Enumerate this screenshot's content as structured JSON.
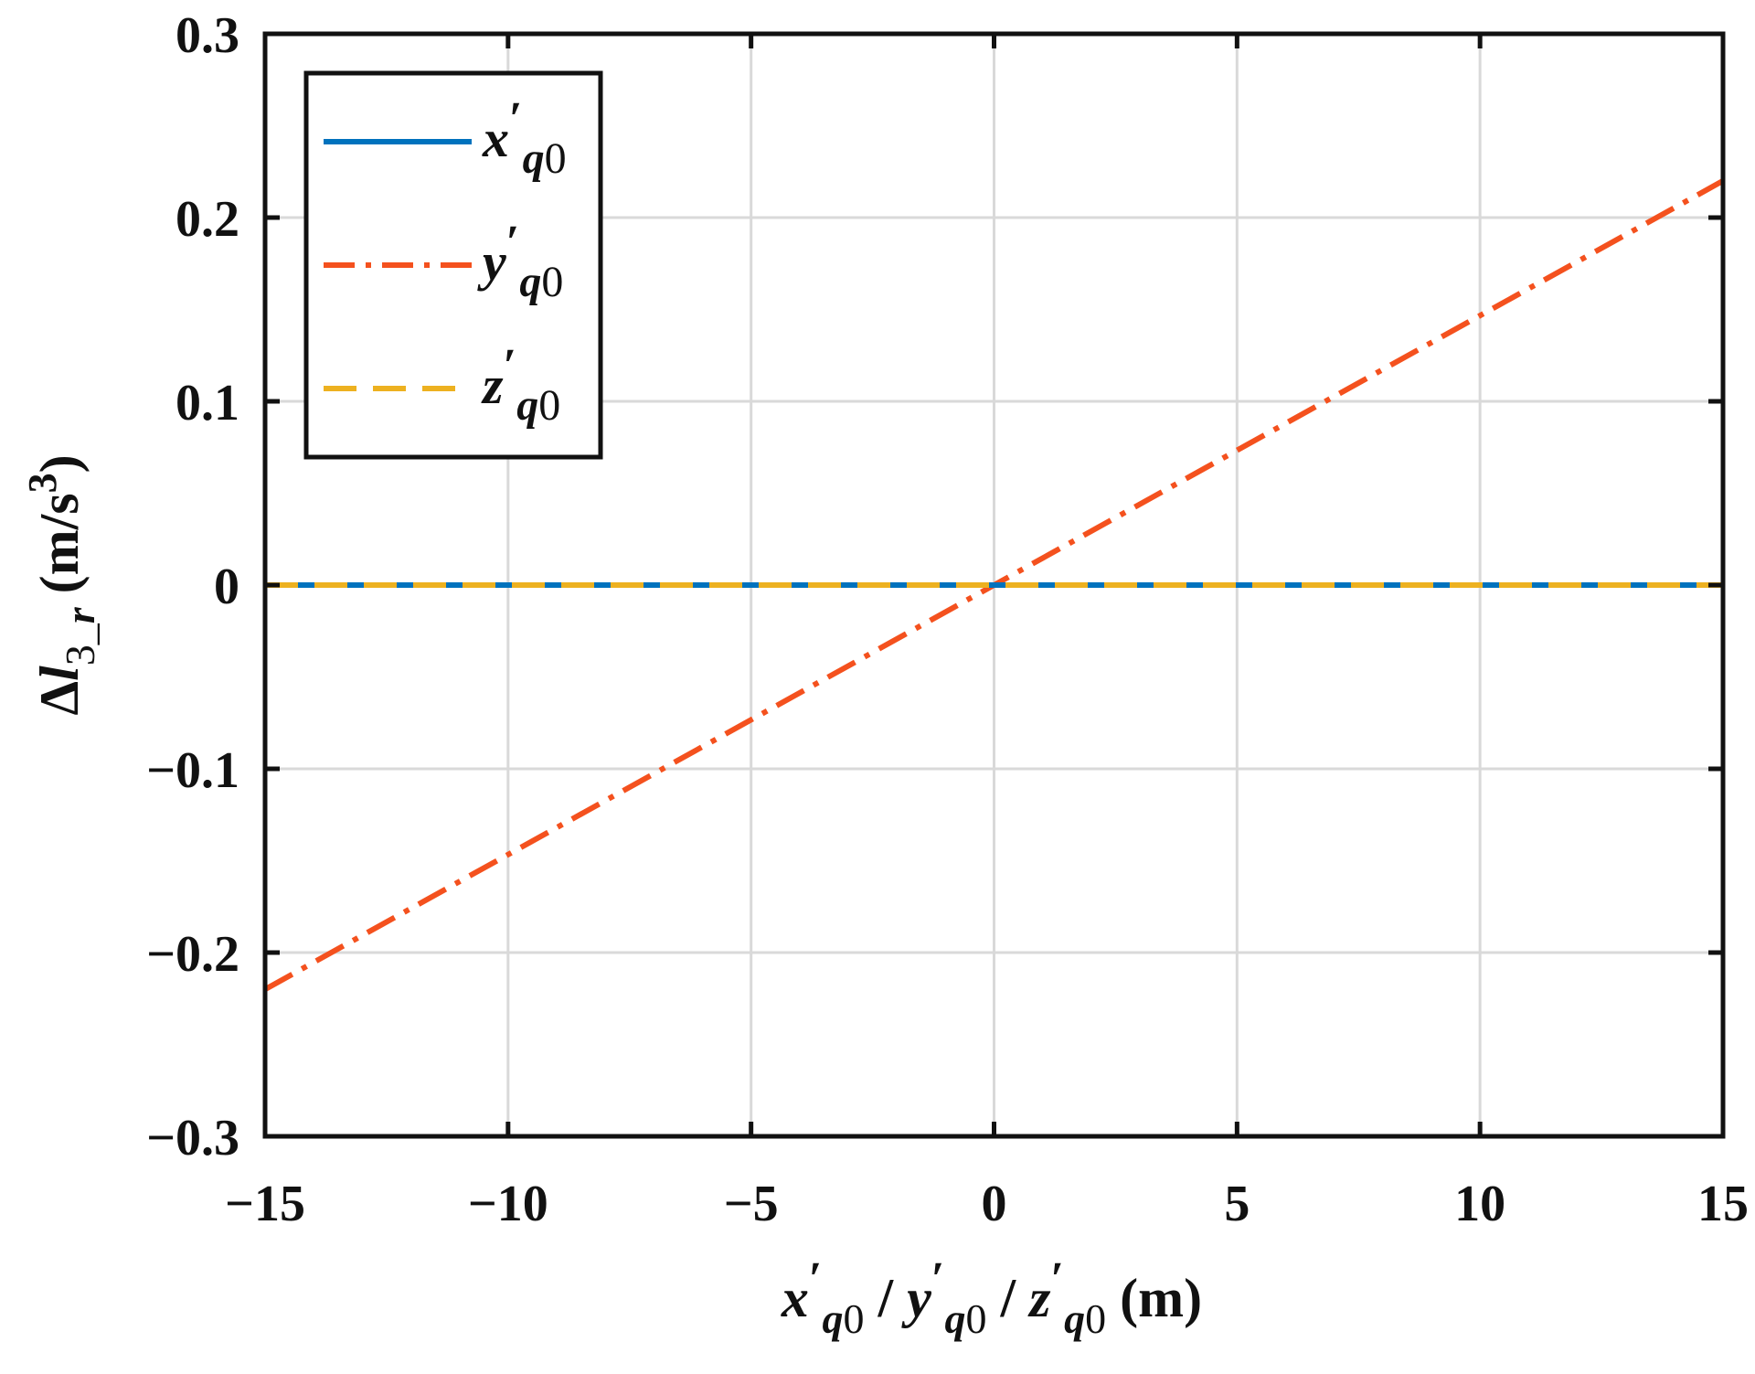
{
  "chart_data": {
    "type": "line",
    "xlim": [
      -15,
      15
    ],
    "ylim": [
      -0.3,
      0.3
    ],
    "grid": true,
    "legend_position": "top-left",
    "xticks": [
      {
        "value": -15,
        "label": "−15"
      },
      {
        "value": -10,
        "label": "−10"
      },
      {
        "value": -5,
        "label": "−5"
      },
      {
        "value": 0,
        "label": "0"
      },
      {
        "value": 5,
        "label": "5"
      },
      {
        "value": 10,
        "label": "10"
      },
      {
        "value": 15,
        "label": "15"
      }
    ],
    "yticks": [
      {
        "value": 0.3,
        "label": "0.3"
      },
      {
        "value": 0.2,
        "label": "0.2"
      },
      {
        "value": 0.1,
        "label": "0.1"
      },
      {
        "value": 0,
        "label": "0"
      },
      {
        "value": -0.1,
        "label": "−0.1"
      },
      {
        "value": -0.2,
        "label": "−0.2"
      },
      {
        "value": -0.3,
        "label": "−0.3"
      }
    ],
    "xlabel": {
      "parts": [
        {
          "text": "x",
          "italic": true
        },
        {
          "text": "′",
          "super": true
        },
        {
          "text": "q",
          "sub": true,
          "italic": true
        },
        {
          "text": "0",
          "sub": true,
          "plain": true
        },
        {
          "text": " / "
        },
        {
          "text": "y",
          "italic": true
        },
        {
          "text": "′",
          "super": true
        },
        {
          "text": "q",
          "sub": true,
          "italic": true
        },
        {
          "text": "0",
          "sub": true,
          "plain": true
        },
        {
          "text": " / "
        },
        {
          "text": "z",
          "italic": true
        },
        {
          "text": "′",
          "super": true
        },
        {
          "text": "q",
          "sub": true,
          "italic": true
        },
        {
          "text": "0",
          "sub": true,
          "plain": true
        },
        {
          "text": "  (m)"
        }
      ]
    },
    "ylabel": {
      "parts": [
        {
          "text": "Δ"
        },
        {
          "text": "l",
          "italic": true
        },
        {
          "text": "3_",
          "sub": true,
          "plain": true
        },
        {
          "text": "r",
          "sub": true,
          "italic": true
        },
        {
          "text": "  (m/s"
        },
        {
          "text": "3",
          "super": true
        },
        {
          "text": ")"
        }
      ]
    },
    "series": [
      {
        "name": "x′q0",
        "name_parts": [
          {
            "text": "x",
            "italic": true
          },
          {
            "text": "′",
            "super": true
          },
          {
            "text": "q",
            "sub": true,
            "italic": true
          },
          {
            "text": "0",
            "sub": true,
            "plain": true
          }
        ],
        "color": "#0072BD",
        "dash": "solid",
        "x": [
          -15,
          15
        ],
        "y": [
          0,
          0
        ]
      },
      {
        "name": "y′q0",
        "name_parts": [
          {
            "text": "y",
            "italic": true
          },
          {
            "text": "′",
            "super": true
          },
          {
            "text": "q",
            "sub": true,
            "italic": true
          },
          {
            "text": "0",
            "sub": true,
            "plain": true
          }
        ],
        "color": "#F4511E",
        "dash": "dashdot",
        "x": [
          -15,
          15
        ],
        "y": [
          -0.22,
          0.22
        ]
      },
      {
        "name": "z′q0",
        "name_parts": [
          {
            "text": "z",
            "italic": true
          },
          {
            "text": "′",
            "super": true
          },
          {
            "text": "q",
            "sub": true,
            "italic": true
          },
          {
            "text": "0",
            "sub": true,
            "plain": true
          }
        ],
        "color": "#EDB120",
        "dash": "dashed",
        "x": [
          -15,
          15
        ],
        "y": [
          0,
          0
        ]
      }
    ]
  }
}
